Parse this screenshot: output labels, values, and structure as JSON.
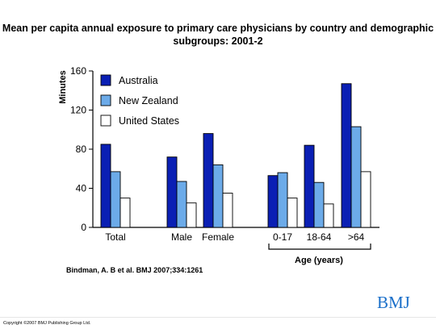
{
  "title": "Mean per capita annual exposure to primary care physicians by country and demographic subgroups: 2001-2",
  "citation": "Bindman, A. B et al. BMJ 2007;334:1261",
  "copyright": "Copyright ©2007 BMJ Publishing Group Ltd.",
  "logo_text": "BMJ",
  "colors": {
    "australia": "#0a1fb4",
    "new_zealand": "#6cabe9",
    "united_states": "#ffffff",
    "axis": "#000000"
  },
  "chart_data": {
    "type": "bar",
    "title": "Mean per capita annual exposure to primary care physicians by country and demographic subgroups: 2001-2",
    "ylabel": "Minutes",
    "xlabel": "",
    "group_label": "Age (years)",
    "ylim": [
      0,
      160
    ],
    "yticks": [
      0,
      40,
      80,
      120,
      160
    ],
    "categories": [
      "Total",
      "Male",
      "Female",
      "0-17",
      "18-64",
      ">64"
    ],
    "series": [
      {
        "name": "Australia",
        "values": [
          85,
          72,
          96,
          53,
          84,
          147
        ]
      },
      {
        "name": "New Zealand",
        "values": [
          57,
          47,
          64,
          56,
          46,
          103
        ]
      },
      {
        "name": "United States",
        "values": [
          30,
          25,
          35,
          30,
          24,
          57
        ]
      }
    ],
    "legend_position": "top-left",
    "grid": false
  }
}
